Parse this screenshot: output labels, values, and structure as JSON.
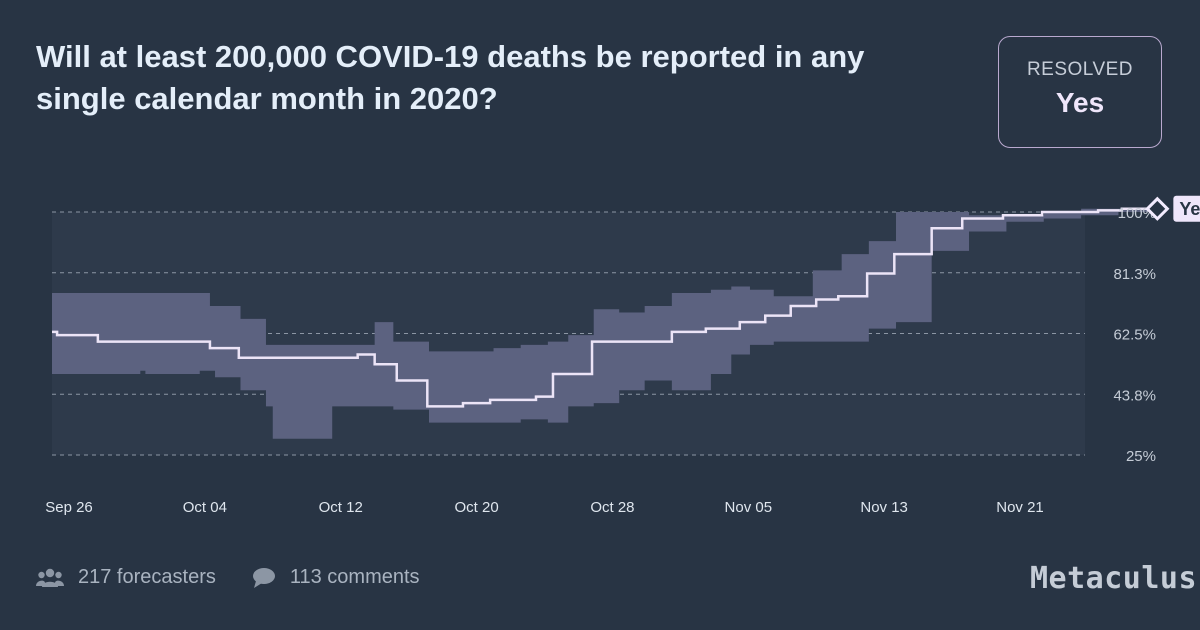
{
  "question": {
    "title": "Will at least 200,000 COVID-19 deaths be reported in any single calendar month in 2020?"
  },
  "resolution": {
    "label": "RESOLVED",
    "value": "Yes"
  },
  "chart_data": {
    "type": "line",
    "xlabel": "",
    "ylabel": "",
    "x_ticks": [
      "Sep 26",
      "Oct 04",
      "Oct 12",
      "Oct 20",
      "Oct 28",
      "Nov 05",
      "Nov 13",
      "Nov 21"
    ],
    "y_ticks": [
      "25%",
      "43.8%",
      "62.5%",
      "81.3%",
      "100%"
    ],
    "ylim": [
      25,
      100
    ],
    "grid": true,
    "resolution_marker": "Yes",
    "series": [
      {
        "median": [
          [
            0,
            63
          ],
          [
            0.3,
            62
          ],
          [
            2.7,
            60
          ],
          [
            9.3,
            58
          ],
          [
            11,
            55
          ],
          [
            18,
            56
          ],
          [
            19,
            53
          ],
          [
            20.3,
            48
          ],
          [
            22.1,
            40
          ],
          [
            24.2,
            41
          ],
          [
            25.8,
            42
          ],
          [
            28.5,
            43
          ],
          [
            29.5,
            50
          ],
          [
            31.8,
            60
          ],
          [
            36.5,
            63
          ],
          [
            38.5,
            64
          ],
          [
            40.5,
            66
          ],
          [
            42,
            68
          ],
          [
            43.5,
            71
          ],
          [
            45,
            73
          ],
          [
            46.3,
            74
          ],
          [
            48,
            81
          ],
          [
            49.6,
            87
          ],
          [
            51.8,
            95
          ],
          [
            53.6,
            98
          ],
          [
            56,
            99
          ],
          [
            58.3,
            100
          ],
          [
            61.6,
            100.5
          ],
          [
            63,
            101
          ],
          [
            64.5,
            101
          ]
        ],
        "band": [
          [
            0,
            75,
            50
          ],
          [
            3,
            75,
            50
          ],
          [
            4.9,
            75,
            50
          ],
          [
            5.2,
            75,
            51
          ],
          [
            5.5,
            75,
            50
          ],
          [
            8.7,
            75,
            51
          ],
          [
            9.3,
            71,
            51
          ],
          [
            9.6,
            71,
            49
          ],
          [
            11.1,
            67,
            45
          ],
          [
            12.6,
            59,
            40
          ],
          [
            13,
            59,
            30
          ],
          [
            16.5,
            59,
            40
          ],
          [
            18,
            59,
            40
          ],
          [
            19,
            66,
            40
          ],
          [
            20.1,
            60,
            39
          ],
          [
            22.2,
            57,
            35
          ],
          [
            26,
            58,
            35
          ],
          [
            27.6,
            59,
            36
          ],
          [
            29.2,
            60,
            35
          ],
          [
            30.4,
            62,
            40
          ],
          [
            31.9,
            70,
            41
          ],
          [
            33.4,
            69,
            45
          ],
          [
            34.9,
            71,
            48
          ],
          [
            36.5,
            75,
            45
          ],
          [
            38.8,
            76,
            50
          ],
          [
            40,
            77,
            56
          ],
          [
            41.1,
            76,
            59
          ],
          [
            42.5,
            74,
            60
          ],
          [
            44.8,
            82,
            60
          ],
          [
            46.5,
            87,
            60
          ],
          [
            48.1,
            91,
            64
          ],
          [
            49.7,
            100,
            66
          ],
          [
            51.8,
            100,
            88
          ],
          [
            54,
            99,
            94
          ],
          [
            56.2,
            99,
            97
          ],
          [
            58.4,
            100,
            98
          ],
          [
            60.6,
            101,
            99
          ],
          [
            62.8,
            101,
            100
          ],
          [
            64.5,
            101,
            100
          ]
        ]
      }
    ]
  },
  "stats": {
    "forecasters": "217 forecasters",
    "comments": "113 comments"
  },
  "brand": "Metaculus"
}
